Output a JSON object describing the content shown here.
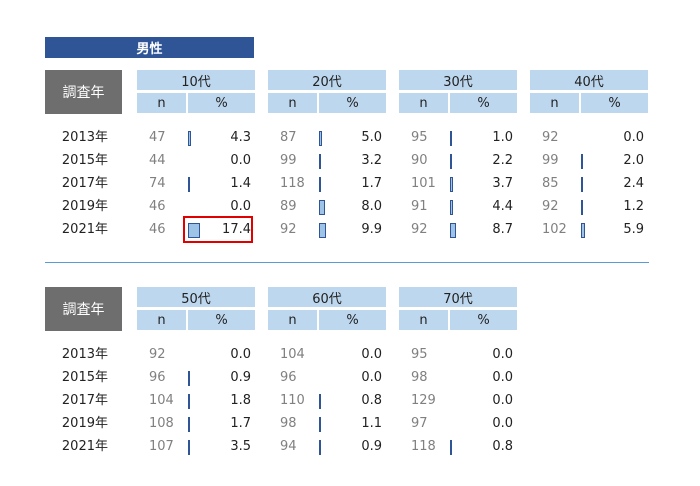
{
  "title": "男性",
  "year_header": "調査年",
  "n_label": "n",
  "pct_label": "%",
  "years": [
    "2013年",
    "2015年",
    "2017年",
    "2019年",
    "2021年"
  ],
  "top_groups": [
    {
      "label": "10代",
      "n": [
        47,
        44,
        74,
        46,
        46
      ],
      "pct": [
        "4.3",
        "0.0",
        "1.4",
        "0.0",
        "17.4"
      ]
    },
    {
      "label": "20代",
      "n": [
        87,
        99,
        118,
        89,
        92
      ],
      "pct": [
        "5.0",
        "3.2",
        "1.7",
        "8.0",
        "9.9"
      ]
    },
    {
      "label": "30代",
      "n": [
        95,
        90,
        101,
        91,
        92
      ],
      "pct": [
        "1.0",
        "2.2",
        "3.7",
        "4.4",
        "8.7"
      ]
    },
    {
      "label": "40代",
      "n": [
        92,
        99,
        85,
        92,
        102
      ],
      "pct": [
        "0.0",
        "2.0",
        "2.4",
        "1.2",
        "5.9"
      ]
    }
  ],
  "bottom_groups": [
    {
      "label": "50代",
      "n": [
        92,
        96,
        104,
        108,
        107
      ],
      "pct": [
        "0.0",
        "0.9",
        "1.8",
        "1.7",
        "3.5"
      ]
    },
    {
      "label": "60代",
      "n": [
        104,
        96,
        110,
        98,
        94
      ],
      "pct": [
        "0.0",
        "0.0",
        "0.8",
        "1.1",
        "0.9"
      ]
    },
    {
      "label": "70代",
      "n": [
        95,
        98,
        129,
        97,
        118
      ],
      "pct": [
        "0.0",
        "0.0",
        "0.0",
        "0.0",
        "0.8"
      ]
    }
  ],
  "highlighted_cell": {
    "group": "10代",
    "year": "2021年",
    "value": "17.4"
  },
  "colors": {
    "title_bg": "#2f5597",
    "header_bg": "#bdd7ee",
    "year_header_bg": "#6e6e6e",
    "bar_fill": "#9dc3e6",
    "bar_border": "#2f5597",
    "highlight": "#e00000",
    "divider": "#5b9bd5"
  }
}
